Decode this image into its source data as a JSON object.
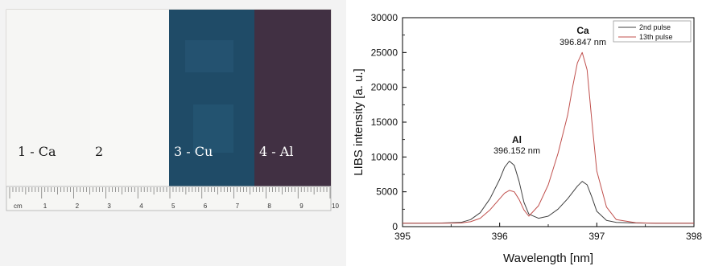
{
  "photo": {
    "samples": [
      {
        "label": "1 - Ca",
        "color": "#f6f6f4"
      },
      {
        "label": "2",
        "color": "#f8f8f6"
      },
      {
        "label": "3 - Cu",
        "color": "#1f4b67"
      },
      {
        "label": "4 - Al",
        "color": "#413043"
      }
    ],
    "ruler": {
      "unit_label": "cm",
      "numbers": [
        "1",
        "2",
        "3",
        "4",
        "5",
        "6",
        "7",
        "8",
        "9",
        "10"
      ]
    }
  },
  "chart_data": {
    "type": "line",
    "xlabel": "Wavelength [nm]",
    "ylabel": "LIBS intensity [a. u.]",
    "xlim": [
      395,
      398
    ],
    "ylim": [
      0,
      30000
    ],
    "x_ticks": [
      "395",
      "396",
      "397",
      "398"
    ],
    "y_ticks": [
      "0",
      "5000",
      "10000",
      "15000",
      "20000",
      "25000",
      "30000"
    ],
    "legend": {
      "placement": "top-right",
      "entries": [
        "2nd pulse",
        "13th pulse"
      ]
    },
    "annotations": [
      {
        "element": "Al",
        "wavelength_text": "396.152 nm",
        "x": 396.152
      },
      {
        "element": "Ca",
        "wavelength_text": "396.847 nm",
        "x": 396.847
      }
    ],
    "series": [
      {
        "name": "2nd pulse",
        "color": "#404040",
        "x": [
          395.0,
          395.2,
          395.4,
          395.6,
          395.7,
          395.8,
          395.9,
          396.0,
          396.05,
          396.1,
          396.15,
          396.2,
          396.25,
          396.3,
          396.4,
          396.5,
          396.6,
          396.7,
          396.8,
          396.85,
          396.9,
          396.95,
          397.0,
          397.1,
          397.2,
          397.4,
          397.6,
          397.8,
          398.0
        ],
        "y": [
          500,
          500,
          520,
          600,
          1000,
          2000,
          4000,
          6800,
          8500,
          9400,
          8800,
          6500,
          3500,
          1800,
          1200,
          1500,
          2500,
          4000,
          5800,
          6500,
          6000,
          4200,
          2200,
          900,
          600,
          520,
          500,
          500,
          500
        ]
      },
      {
        "name": "13th pulse",
        "color": "#c0504d",
        "x": [
          395.0,
          395.2,
          395.4,
          395.6,
          395.7,
          395.8,
          395.9,
          396.0,
          396.05,
          396.1,
          396.15,
          396.2,
          396.25,
          396.3,
          396.4,
          396.5,
          396.6,
          396.7,
          396.75,
          396.8,
          396.85,
          396.9,
          396.95,
          397.0,
          397.1,
          397.2,
          397.4,
          397.6,
          397.8,
          398.0
        ],
        "y": [
          500,
          500,
          500,
          520,
          700,
          1200,
          2400,
          4000,
          4800,
          5200,
          5000,
          3900,
          2400,
          1500,
          3000,
          6000,
          10500,
          16000,
          20000,
          23500,
          25000,
          22500,
          15000,
          8000,
          2800,
          1000,
          560,
          500,
          500,
          500
        ]
      }
    ]
  }
}
